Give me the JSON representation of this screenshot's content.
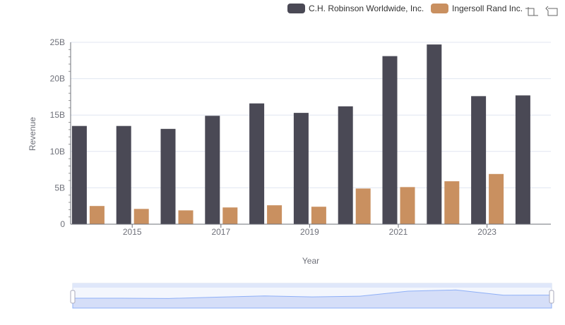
{
  "chart_data": {
    "type": "bar",
    "title": "",
    "xlabel": "Year",
    "ylabel": "Revenue",
    "ylim": [
      0,
      25
    ],
    "y_unit": "B",
    "yticks": [
      "0",
      "5B",
      "10B",
      "15B",
      "20B",
      "25B"
    ],
    "categories": [
      "2014",
      "2015",
      "2016",
      "2017",
      "2018",
      "2019",
      "2020",
      "2021",
      "2022",
      "2023",
      "2024"
    ],
    "xtick_labels": [
      "2015",
      "2017",
      "2019",
      "2021",
      "2023"
    ],
    "legend_position": "top-right",
    "series": [
      {
        "name": "C.H. Robinson Worldwide, Inc.",
        "color": "#4a4955",
        "values": [
          13.5,
          13.5,
          13.1,
          14.9,
          16.6,
          15.3,
          16.2,
          23.1,
          24.7,
          17.6,
          17.7
        ]
      },
      {
        "name": "Ingersoll Rand Inc.",
        "color": "#c99060",
        "values": [
          2.5,
          2.1,
          1.9,
          2.3,
          2.6,
          2.4,
          4.9,
          5.1,
          5.9,
          6.9,
          null
        ]
      }
    ]
  },
  "toolbar": {
    "icons": [
      "zoom-icon",
      "restore-icon"
    ]
  }
}
